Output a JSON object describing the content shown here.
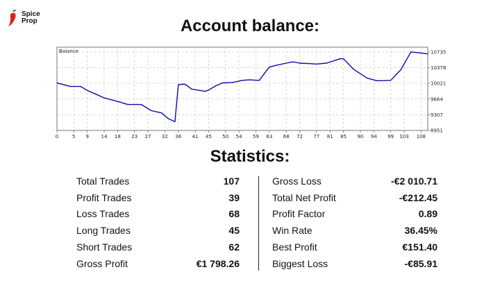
{
  "brand": {
    "logo_line1": "Spice",
    "logo_line2": "Prop"
  },
  "page": {
    "title": "Account balance:",
    "stats_title": "Statistics:"
  },
  "chart_data": {
    "type": "line",
    "title": "Balance",
    "x_tick_labels": [
      "0",
      "5",
      "9",
      "14",
      "18",
      "23",
      "27",
      "32",
      "36",
      "41",
      "45",
      "50",
      "54",
      "59",
      "63",
      "68",
      "72",
      "77",
      "81",
      "85",
      "90",
      "94",
      "99",
      "103",
      "108"
    ],
    "y_tick_labels": [
      "10735",
      "10378",
      "10021",
      "9664",
      "9307",
      "8951"
    ],
    "xlim": [
      0,
      110
    ],
    "ylim": [
      8951,
      10843
    ],
    "grid": true,
    "series": [
      {
        "color": "#0a0aa8",
        "x": [
          0,
          4,
          7,
          9,
          12,
          14,
          18,
          21,
          25,
          28,
          31,
          33,
          35,
          36,
          37,
          38,
          40,
          44,
          45,
          47,
          49,
          52,
          55,
          57,
          60,
          63,
          65,
          68,
          70,
          72,
          75,
          77,
          80,
          84,
          85,
          88,
          92,
          95,
          99,
          102,
          105,
          108,
          110
        ],
        "y": [
          10030,
          9950,
          9950,
          9860,
          9760,
          9690,
          9610,
          9540,
          9540,
          9400,
          9350,
          9220,
          9150,
          9990,
          10000,
          10000,
          9890,
          9840,
          9870,
          9960,
          10030,
          10040,
          10090,
          10100,
          10090,
          10390,
          10430,
          10480,
          10510,
          10480,
          10470,
          10460,
          10480,
          10580,
          10580,
          10340,
          10140,
          10080,
          10090,
          10330,
          10735,
          10710,
          10690
        ]
      }
    ]
  },
  "statistics": {
    "left": [
      {
        "label": "Total Trades",
        "value": "107"
      },
      {
        "label": "Profit Trades",
        "value": "39"
      },
      {
        "label": "Loss Trades",
        "value": "68"
      },
      {
        "label": "Long Trades",
        "value": "45"
      },
      {
        "label": "Short Trades",
        "value": "62"
      },
      {
        "label": "Gross Profit",
        "value": "€1 798.26"
      }
    ],
    "right": [
      {
        "label": "Gross Loss",
        "value": "-€2 010.71"
      },
      {
        "label": "Total Net Profit",
        "value": "-€212.45"
      },
      {
        "label": "Profit Factor",
        "value": "0.89"
      },
      {
        "label": "Win Rate",
        "value": "36.45%"
      },
      {
        "label": "Best Profit",
        "value": "€151.40"
      },
      {
        "label": "Biggest Loss",
        "value": "-€85.91"
      }
    ]
  },
  "colors": {
    "line": "#0a0aa8",
    "logo": "#d8231f",
    "grid": "#c8c8c8"
  }
}
